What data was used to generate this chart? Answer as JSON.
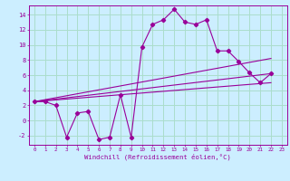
{
  "xlabel": "Windchill (Refroidissement éolien,°C)",
  "bg_color": "#cceeff",
  "grid_color": "#aaddcc",
  "line_color": "#990099",
  "xlim": [
    -0.5,
    23.5
  ],
  "ylim": [
    -3.2,
    15.2
  ],
  "xticks": [
    0,
    1,
    2,
    3,
    4,
    5,
    6,
    7,
    8,
    9,
    10,
    11,
    12,
    13,
    14,
    15,
    16,
    17,
    18,
    19,
    20,
    21,
    22,
    23
  ],
  "yticks": [
    -2,
    0,
    2,
    4,
    6,
    8,
    10,
    12,
    14
  ],
  "series1_x": [
    0,
    1,
    2,
    3,
    4,
    5,
    6,
    7,
    8,
    9,
    10,
    11,
    12,
    13,
    14,
    15,
    16,
    17,
    18,
    19,
    20,
    21,
    22
  ],
  "series1_y": [
    2.5,
    2.5,
    2.0,
    -2.2,
    1.0,
    1.2,
    -2.5,
    -2.2,
    3.4,
    -2.2,
    9.7,
    12.7,
    13.3,
    14.7,
    13.0,
    12.7,
    13.3,
    9.2,
    9.2,
    7.8,
    6.3,
    5.0,
    6.2
  ],
  "series2_x": [
    0,
    22
  ],
  "series2_y": [
    2.5,
    6.2
  ],
  "series3_x": [
    0,
    22
  ],
  "series3_y": [
    2.5,
    8.2
  ],
  "series4_x": [
    0,
    22
  ],
  "series4_y": [
    2.5,
    5.0
  ]
}
